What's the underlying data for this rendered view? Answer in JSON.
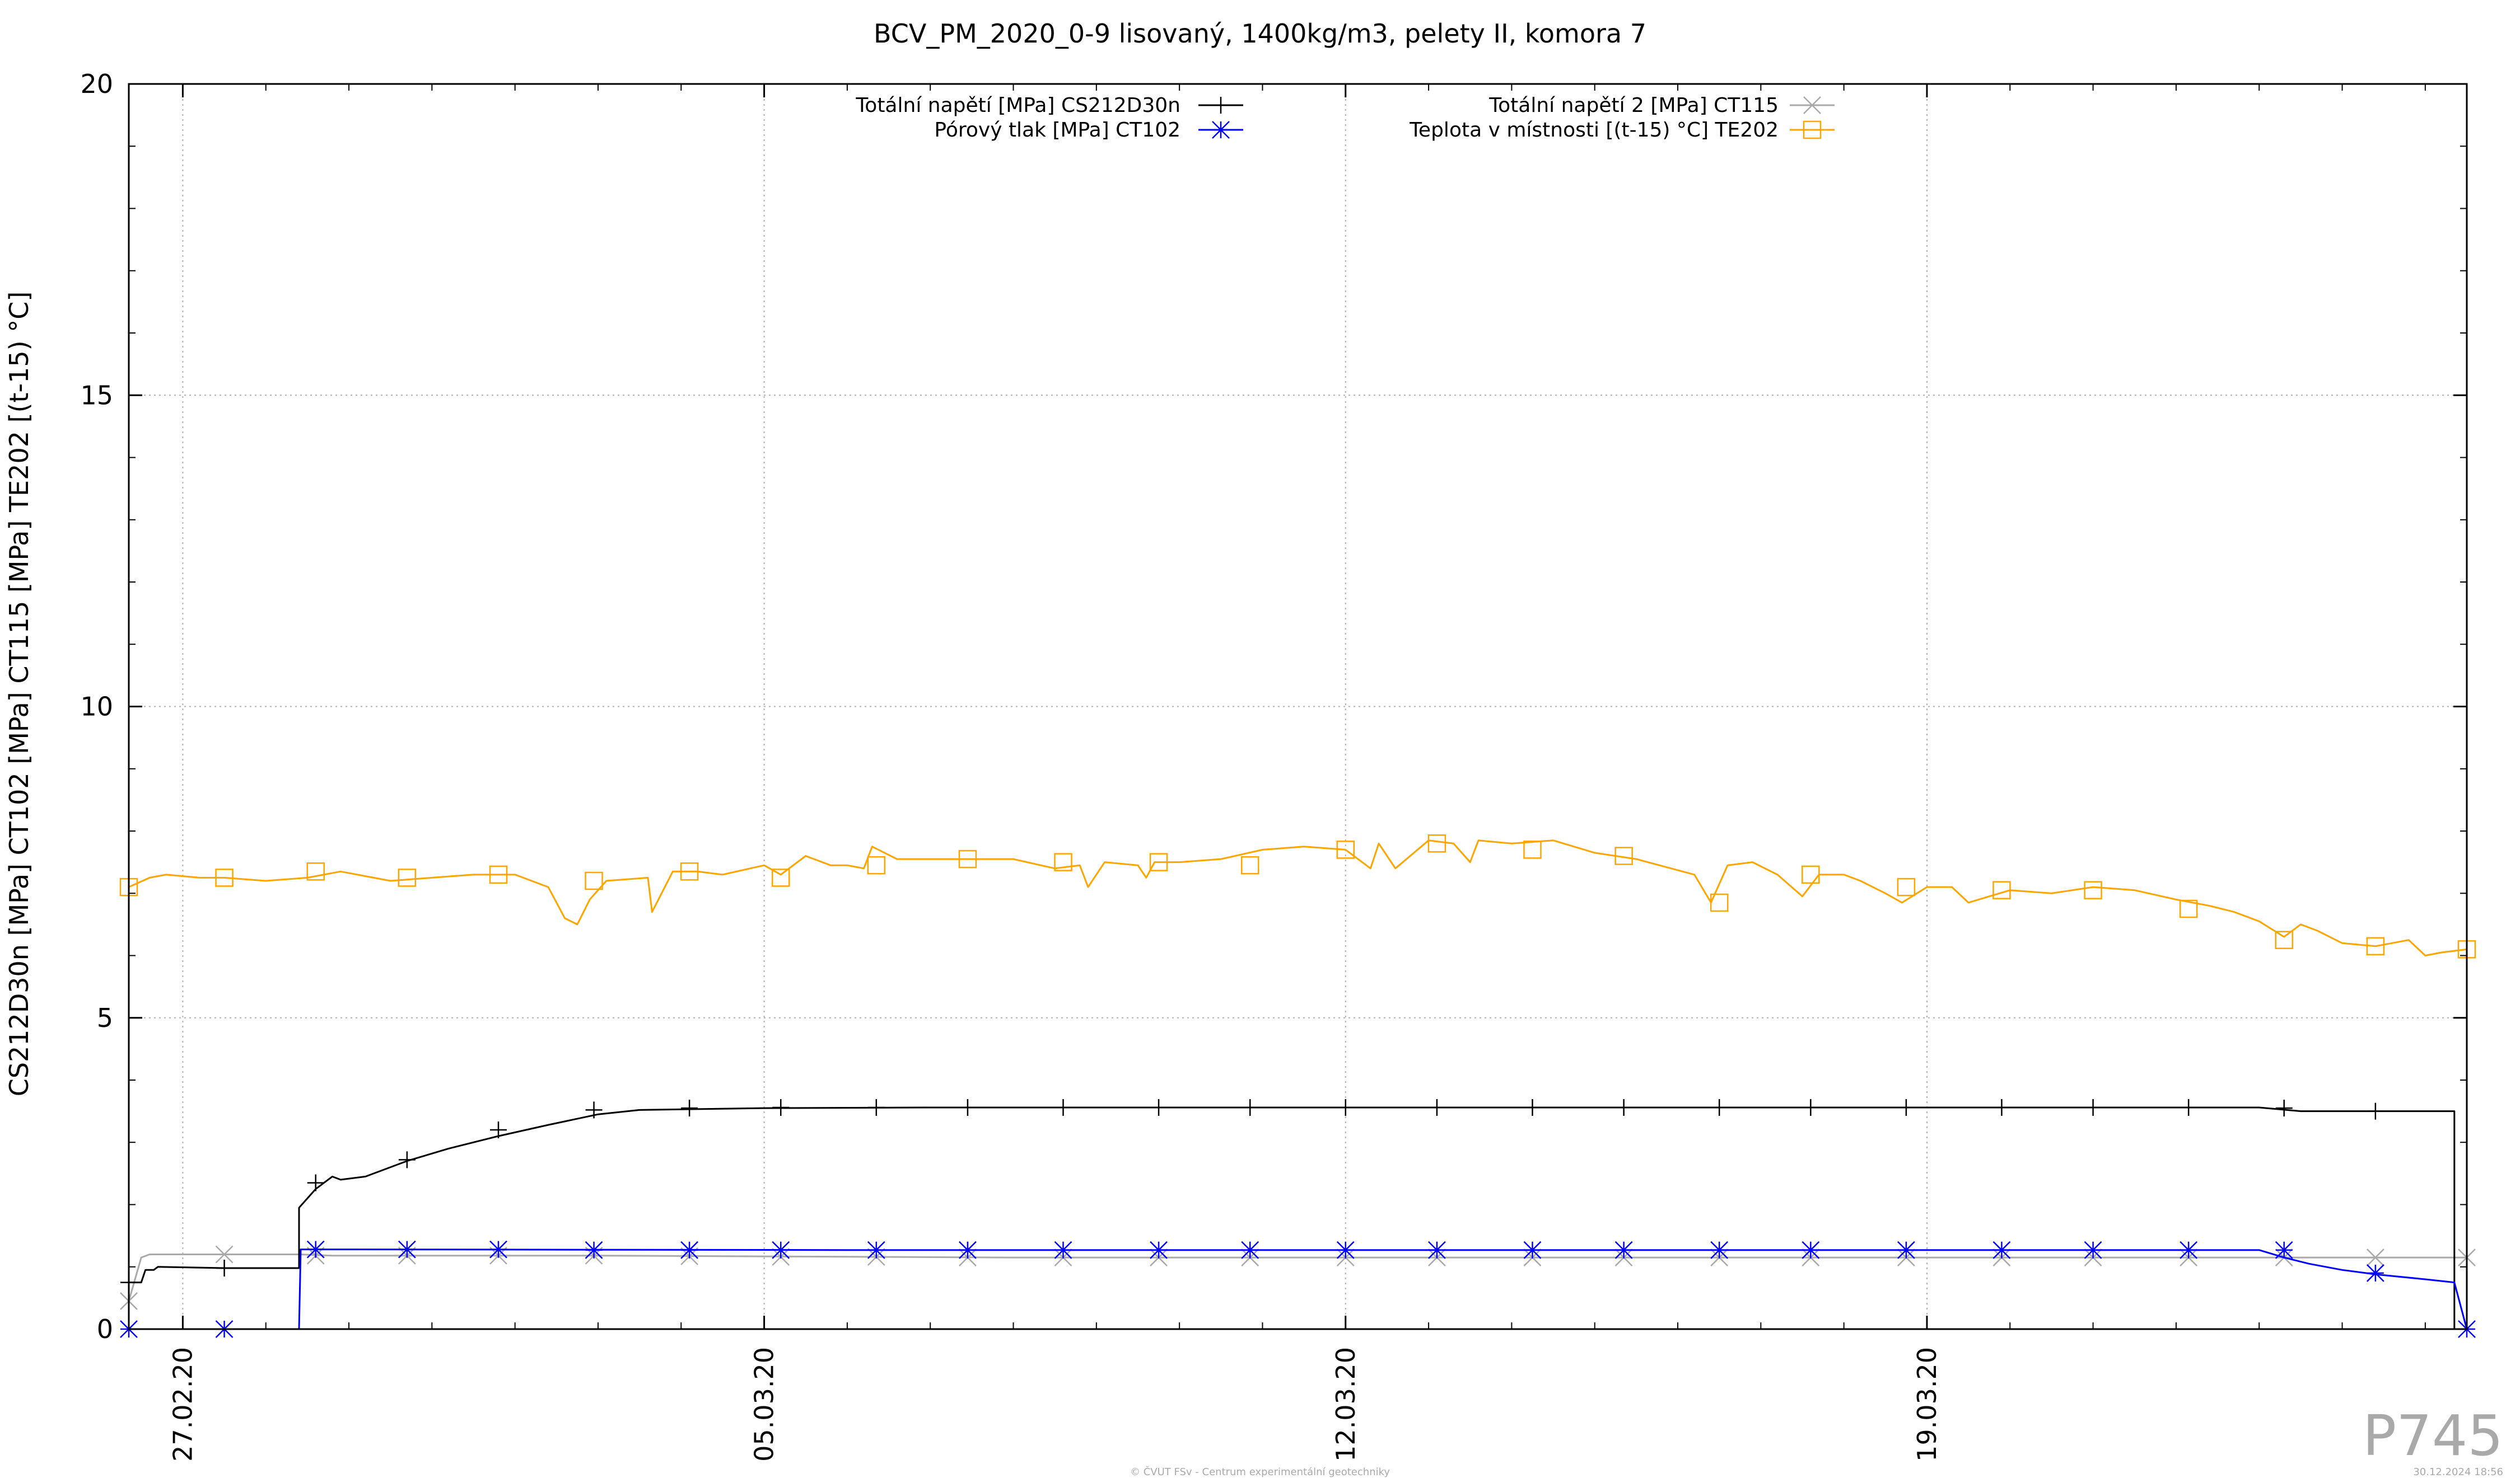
{
  "chart_data": {
    "type": "line",
    "title": "BCV_PM_2020_0-9 lisovaný, 1400kg/m3, pelety II, komora 7",
    "ylabel": "CS212D30n [MPa] CT102 [MPa] CT115 [MPa] TE202 [(t-15) °C]",
    "xlabel": "",
    "ylim": [
      0,
      20
    ],
    "yticks": [
      0,
      5,
      10,
      15,
      20
    ],
    "xlim": [
      -0.65,
      27.5
    ],
    "xticks": [
      {
        "x": 0,
        "label": "27.02.20"
      },
      {
        "x": 7,
        "label": "05.03.20"
      },
      {
        "x": 14,
        "label": "12.03.20"
      },
      {
        "x": 21,
        "label": "19.03.20"
      }
    ],
    "x_unit_note": "days from 27.02.20",
    "grid": true,
    "legend_position": "top",
    "series": [
      {
        "name": "Totální napětí [MPa] CS212D30n",
        "color": "#000000",
        "marker": "plus",
        "x": [
          -0.65,
          -0.5,
          -0.45,
          -0.35,
          -0.3,
          0.5,
          1.0,
          1.4,
          1.4,
          1.6,
          1.8,
          1.9,
          2.2,
          2.7,
          3.2,
          3.8,
          4.4,
          5.0,
          5.5,
          7.0,
          9.0,
          11.0,
          13.0,
          15.0,
          17.0,
          19.0,
          21.0,
          24.0,
          25.0,
          25.5,
          27.35,
          27.35
        ],
        "y": [
          0.75,
          0.75,
          0.95,
          0.95,
          1.0,
          0.98,
          0.98,
          0.98,
          1.95,
          2.25,
          2.45,
          2.4,
          2.45,
          2.7,
          2.9,
          3.1,
          3.28,
          3.45,
          3.52,
          3.55,
          3.56,
          3.56,
          3.56,
          3.56,
          3.56,
          3.56,
          3.56,
          3.56,
          3.56,
          3.5,
          3.5,
          0.0
        ],
        "markers_x": [
          -0.65,
          0.5,
          1.6,
          2.7,
          3.8,
          4.95,
          6.1,
          7.2,
          8.35,
          9.45,
          10.6,
          11.75,
          12.85,
          14.0,
          15.1,
          16.25,
          17.35,
          18.5,
          19.6,
          20.75,
          21.9,
          23.0,
          24.15,
          25.3,
          26.4
        ],
        "markers_y": [
          0.75,
          0.98,
          2.35,
          2.72,
          3.2,
          3.52,
          3.55,
          3.56,
          3.56,
          3.56,
          3.56,
          3.56,
          3.56,
          3.56,
          3.56,
          3.56,
          3.56,
          3.56,
          3.56,
          3.56,
          3.56,
          3.56,
          3.56,
          3.55,
          3.5
        ]
      },
      {
        "name": "Totální napětí 2 [MPa] CT115",
        "color": "#a9a9a9",
        "marker": "cross",
        "x": [
          -0.65,
          -0.5,
          -0.4,
          1.4,
          1.8,
          5,
          10,
          15,
          20,
          25,
          27.5
        ],
        "y": [
          0.45,
          1.15,
          1.2,
          1.2,
          1.18,
          1.18,
          1.15,
          1.15,
          1.15,
          1.15,
          1.15
        ],
        "markers_x": [
          -0.65,
          0.5,
          1.6,
          2.7,
          3.8,
          4.95,
          6.1,
          7.2,
          8.35,
          9.45,
          10.6,
          11.75,
          12.85,
          14.0,
          15.1,
          16.25,
          17.35,
          18.5,
          19.6,
          20.75,
          21.9,
          23.0,
          24.15,
          25.3,
          26.4,
          27.5
        ],
        "markers_y": [
          0.45,
          1.2,
          1.18,
          1.18,
          1.18,
          1.18,
          1.17,
          1.16,
          1.16,
          1.15,
          1.15,
          1.15,
          1.15,
          1.15,
          1.15,
          1.15,
          1.15,
          1.15,
          1.15,
          1.15,
          1.15,
          1.15,
          1.15,
          1.15,
          1.15,
          1.15
        ]
      },
      {
        "name": "Pórový tlak [MPa] CT102",
        "color": "#0000ff",
        "marker": "star",
        "x": [
          -0.65,
          1.4,
          1.42,
          2.0,
          8.0,
          14.0,
          20.0,
          24.0,
          25.0,
          25.3,
          25.6,
          26.0,
          26.4,
          27.0,
          27.35,
          27.5
        ],
        "y": [
          0.0,
          0.0,
          1.28,
          1.28,
          1.27,
          1.27,
          1.27,
          1.27,
          1.27,
          1.15,
          1.05,
          0.95,
          0.88,
          0.8,
          0.75,
          0.0
        ],
        "markers_x": [
          -0.65,
          0.5,
          1.6,
          2.7,
          3.8,
          4.95,
          6.1,
          7.2,
          8.35,
          9.45,
          10.6,
          11.75,
          12.85,
          14.0,
          15.1,
          16.25,
          17.35,
          18.5,
          19.6,
          20.75,
          21.9,
          23.0,
          24.15,
          25.3,
          26.4,
          27.5
        ],
        "markers_y": [
          0.0,
          0.0,
          1.28,
          1.28,
          1.28,
          1.27,
          1.27,
          1.27,
          1.27,
          1.27,
          1.27,
          1.27,
          1.27,
          1.27,
          1.27,
          1.27,
          1.27,
          1.27,
          1.27,
          1.27,
          1.27,
          1.27,
          1.27,
          1.27,
          0.9,
          0.0
        ]
      },
      {
        "name": "Teplota v místnosti [(t-15) °C] TE202",
        "color": "#ffa500",
        "marker": "square",
        "x": [
          -0.65,
          -0.4,
          -0.2,
          0.2,
          0.5,
          1.0,
          1.5,
          1.9,
          2.5,
          3.0,
          3.5,
          4.0,
          4.4,
          4.6,
          4.75,
          4.9,
          5.1,
          5.6,
          5.65,
          5.9,
          6.2,
          6.5,
          7.0,
          7.2,
          7.5,
          7.8,
          8.0,
          8.2,
          8.3,
          8.6,
          9.0,
          9.5,
          10.0,
          10.5,
          10.8,
          10.9,
          11.1,
          11.5,
          11.6,
          11.7,
          12.0,
          12.5,
          13.0,
          13.5,
          14.0,
          14.3,
          14.4,
          14.6,
          15.0,
          15.3,
          15.5,
          15.6,
          16.0,
          16.5,
          17.0,
          17.5,
          18.2,
          18.4,
          18.6,
          18.9,
          19.2,
          19.5,
          19.7,
          20.0,
          20.2,
          20.5,
          20.7,
          21.0,
          21.3,
          21.5,
          22.0,
          22.5,
          23.0,
          23.5,
          24.0,
          24.4,
          24.7,
          25.0,
          25.3,
          25.5,
          25.7,
          26.0,
          26.4,
          26.8,
          27.0,
          27.2,
          27.5
        ],
        "y": [
          7.1,
          7.25,
          7.3,
          7.25,
          7.25,
          7.2,
          7.25,
          7.35,
          7.2,
          7.25,
          7.3,
          7.3,
          7.1,
          6.6,
          6.5,
          6.9,
          7.2,
          7.25,
          6.7,
          7.35,
          7.35,
          7.3,
          7.45,
          7.3,
          7.6,
          7.45,
          7.45,
          7.4,
          7.75,
          7.55,
          7.55,
          7.55,
          7.55,
          7.4,
          7.45,
          7.1,
          7.5,
          7.45,
          7.25,
          7.5,
          7.5,
          7.55,
          7.7,
          7.75,
          7.7,
          7.4,
          7.8,
          7.4,
          7.85,
          7.8,
          7.5,
          7.85,
          7.8,
          7.85,
          7.65,
          7.55,
          7.3,
          6.85,
          7.45,
          7.5,
          7.3,
          6.95,
          7.3,
          7.3,
          7.2,
          7.0,
          6.85,
          7.1,
          7.1,
          6.85,
          7.05,
          7.0,
          7.1,
          7.05,
          6.9,
          6.8,
          6.7,
          6.55,
          6.3,
          6.5,
          6.4,
          6.2,
          6.15,
          6.25,
          6.0,
          6.05,
          6.1
        ],
        "markers_x": [
          -0.65,
          0.5,
          1.6,
          2.7,
          3.8,
          4.95,
          6.1,
          7.2,
          8.35,
          9.45,
          10.6,
          11.75,
          12.85,
          14.0,
          15.1,
          16.25,
          17.35,
          18.5,
          19.6,
          20.75,
          21.9,
          23.0,
          24.15,
          25.3,
          26.4,
          27.5
        ],
        "markers_y": [
          7.1,
          7.25,
          7.35,
          7.25,
          7.3,
          7.2,
          7.35,
          7.25,
          7.45,
          7.55,
          7.5,
          7.5,
          7.45,
          7.7,
          7.8,
          7.7,
          7.6,
          6.85,
          7.3,
          7.1,
          7.05,
          7.05,
          6.75,
          6.25,
          6.15,
          6.1
        ]
      }
    ],
    "legend_entries": [
      {
        "label": "Totální napětí [MPa] CS212D30n",
        "series": 0
      },
      {
        "label": "Pórový tlak [MPa] CT102",
        "series": 2
      },
      {
        "label": "Totální napětí 2 [MPa] CT115",
        "series": 1
      },
      {
        "label": "Teplota v místnosti [(t-15) °C] TE202",
        "series": 3
      }
    ]
  },
  "watermark": "P745",
  "footer": {
    "credit": "© ČVUT FSv - Centrum experimentální geotechniky",
    "timestamp": "30.12.2024 18:56"
  }
}
